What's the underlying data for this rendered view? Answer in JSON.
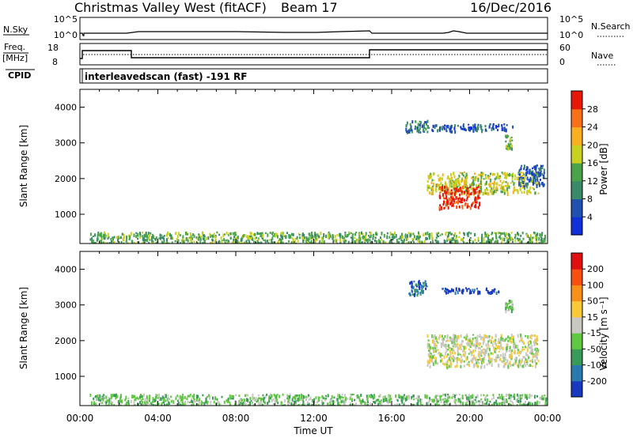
{
  "header": {
    "station": "Christmas Valley West (fitACF)",
    "beam": "Beam 17",
    "date": "16/Dec/2016"
  },
  "noise_panel": {
    "left_label": "N.Sky",
    "right_label": "N.Search",
    "left_ticks": [
      "10^5",
      "10^0"
    ],
    "right_ticks": [
      "10^5",
      "10^0"
    ]
  },
  "freq_panel": {
    "left_label_1": "Freq.",
    "left_label_2": "[MHz]",
    "left_ticks": [
      "18",
      "8"
    ],
    "right_ticks": [
      "60",
      "0"
    ],
    "right_label": "Nave"
  },
  "cpid_panel": {
    "label": "CPID",
    "text": "interleavedscan (fast) -191 RF"
  },
  "chart_data": [
    {
      "type": "heatmap",
      "quantity": "Power",
      "ylabel": "Slant Range [km]",
      "ylim": [
        180,
        4500
      ],
      "yticks": [
        1000,
        2000,
        3000,
        4000
      ],
      "xlim": [
        0,
        24
      ],
      "colorbar": {
        "label": "Power [dB]",
        "ticks": [
          "4",
          "8",
          "12",
          "16",
          "20",
          "24",
          "28"
        ],
        "colors": [
          "#1030d8",
          "#2050b0",
          "#3a8a6a",
          "#4aa34a",
          "#c8d020",
          "#f8b020",
          "#f87018",
          "#e81808"
        ]
      },
      "regions": [
        {
          "t0": 0.5,
          "t1": 23.9,
          "r0": 200,
          "r1": 520,
          "level": 3
        },
        {
          "t0": 16.7,
          "t1": 17.9,
          "r0": 3300,
          "r1": 3650,
          "level": 2
        },
        {
          "t0": 18.0,
          "t1": 22.2,
          "r0": 3350,
          "r1": 3550,
          "level": 1
        },
        {
          "t0": 21.8,
          "t1": 22.2,
          "r0": 2850,
          "r1": 3250,
          "level": 3
        },
        {
          "t0": 17.8,
          "t1": 23.5,
          "r0": 1600,
          "r1": 2200,
          "level": 4
        },
        {
          "t0": 18.4,
          "t1": 20.5,
          "r0": 1200,
          "r1": 1800,
          "level": 7
        },
        {
          "t0": 22.5,
          "t1": 23.8,
          "r0": 1800,
          "r1": 2400,
          "level": 1
        }
      ]
    },
    {
      "type": "heatmap",
      "quantity": "Velocity",
      "xlabel": "Time UT",
      "ylabel": "Slant Range [km]",
      "ylim": [
        180,
        4500
      ],
      "yticks": [
        1000,
        2000,
        3000,
        4000
      ],
      "xlim": [
        0,
        24
      ],
      "xticks": [
        "00:00",
        "04:00",
        "08:00",
        "12:00",
        "16:00",
        "20:00",
        "00:00"
      ],
      "colorbar": {
        "label": "Velocity [m s⁻¹]",
        "ticks": [
          "200",
          "100",
          "50",
          "15",
          "-15",
          "-50",
          "-100",
          "-200"
        ],
        "colors": [
          "#1838c0",
          "#2a7ab0",
          "#3a9a5a",
          "#60c840",
          "#c8c8c0",
          "#f8c838",
          "#f89018",
          "#f85010",
          "#e01010"
        ]
      },
      "regions": [
        {
          "t0": 0.5,
          "t1": 23.9,
          "r0": 200,
          "r1": 520,
          "level": 3
        },
        {
          "t0": 16.8,
          "t1": 17.8,
          "r0": 3300,
          "r1": 3700,
          "level": 1
        },
        {
          "t0": 18.5,
          "t1": 21.5,
          "r0": 3350,
          "r1": 3500,
          "level": 0
        },
        {
          "t0": 21.8,
          "t1": 22.2,
          "r0": 2850,
          "r1": 3150,
          "level": 3
        },
        {
          "t0": 17.8,
          "t1": 23.5,
          "r0": 1300,
          "r1": 2200,
          "level": 4
        }
      ]
    }
  ]
}
